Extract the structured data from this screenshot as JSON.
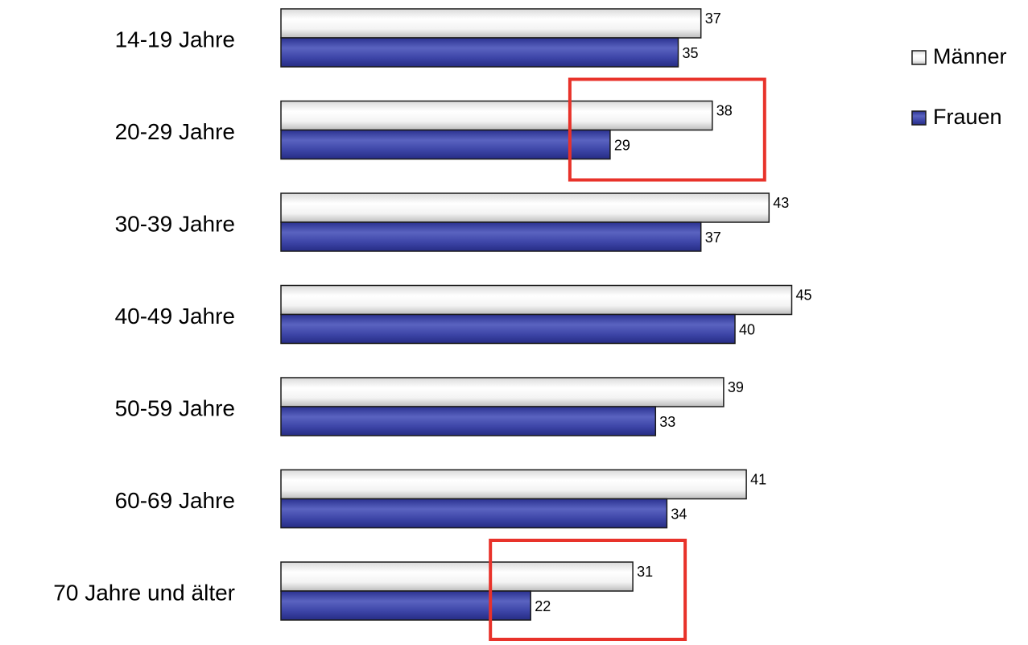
{
  "chart_data": {
    "type": "bar",
    "orientation": "horizontal",
    "categories": [
      "14-19 Jahre",
      "20-29 Jahre",
      "30-39 Jahre",
      "40-49 Jahre",
      "50-59 Jahre",
      "60-69 Jahre",
      "70 Jahre und älter"
    ],
    "series": [
      {
        "name": "Männer",
        "color": "#f2f2f2",
        "values": [
          37,
          38,
          43,
          45,
          39,
          41,
          31
        ]
      },
      {
        "name": "Frauen",
        "color": "#3f48a8",
        "values": [
          35,
          29,
          37,
          40,
          33,
          34,
          22
        ]
      }
    ],
    "data_labels": true,
    "legend": {
      "position": "right",
      "entries": [
        "Männer",
        "Frauen"
      ]
    },
    "grid": false,
    "axes_visible": false,
    "highlight_color": "#e8322a",
    "highlights": [
      "20-29 Jahre",
      "70 Jahre und älter"
    ]
  }
}
